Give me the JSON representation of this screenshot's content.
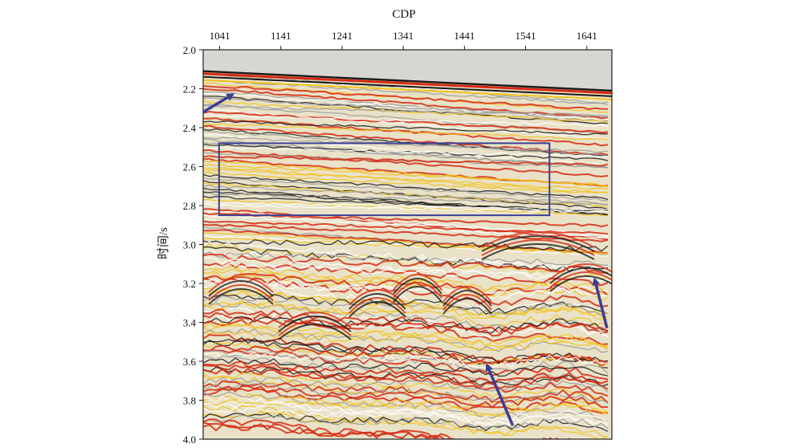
{
  "chart_data": {
    "type": "heatmap",
    "title": "",
    "xlabel": "CDP",
    "ylabel": "时间/s",
    "x_ticks": [
      "1041",
      "1141",
      "1241",
      "1341",
      "1441",
      "1541",
      "1641"
    ],
    "x_tick_values": [
      1041,
      1141,
      1241,
      1341,
      1441,
      1541,
      1641
    ],
    "xlim": [
      1014,
      1682
    ],
    "y_ticks": [
      "2.0",
      "2.2",
      "2.4",
      "2.6",
      "2.8",
      "3.0",
      "3.2",
      "3.4",
      "3.6",
      "3.8",
      "4.0"
    ],
    "y_tick_values": [
      2.0,
      2.2,
      2.4,
      2.6,
      2.8,
      3.0,
      3.2,
      3.4,
      3.6,
      3.8,
      4.0
    ],
    "ylim": [
      2.0,
      4.0
    ],
    "y_inverted": true,
    "x_axis_position": "top",
    "seafloor": {
      "x": [
        1014,
        1682
      ],
      "y": [
        2.11,
        2.21
      ]
    },
    "highlight_box": {
      "x_range": [
        1040,
        1580
      ],
      "y_range": [
        2.48,
        2.85
      ]
    },
    "arrows": [
      {
        "from": [
          1014,
          2.32
        ],
        "to": [
          1062,
          2.23
        ]
      },
      {
        "from": [
          1520,
          3.93
        ],
        "to": [
          1478,
          3.62
        ]
      },
      {
        "from": [
          1674,
          3.43
        ],
        "to": [
          1654,
          3.18
        ]
      }
    ],
    "colors": {
      "background": "#d8d6d0",
      "amplitude_positive": "#d62a14",
      "amplitude_mid": "#f2c21a",
      "amplitude_negative": "#1a1a1a",
      "annotation": "#3b3f95"
    }
  }
}
